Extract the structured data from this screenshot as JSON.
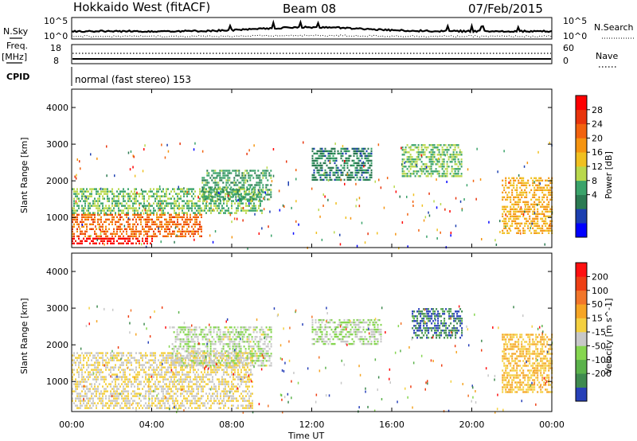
{
  "header": {
    "title": "Hokkaido West (fitACF)",
    "beam": "Beam 08",
    "date": "07/Feb/2015"
  },
  "panels": {
    "nsky_label": "N.Sky",
    "nsky_ticks": [
      "10^5",
      "10^0"
    ],
    "nsearch_ticks": [
      "10^5",
      "10^0"
    ],
    "nsearch_label": "N.Search",
    "freq_label_top": "Freq.",
    "freq_label_bottom": "[MHz]",
    "freq_ticks": [
      "18",
      "8"
    ],
    "nave_ticks": [
      "60",
      "0"
    ],
    "nave_label": "Nave",
    "cpid_label": "CPID",
    "cpid_text": "normal (fast stereo) 153"
  },
  "axes": {
    "ylabel": "Slant Range [km]",
    "yticks": [
      "4000",
      "3000",
      "2000",
      "1000"
    ],
    "xticks": [
      "00:00",
      "04:00",
      "08:00",
      "12:00",
      "16:00",
      "20:00",
      "00:00"
    ],
    "xlabel": "Time UT"
  },
  "colorbars": {
    "power_label": "Power [dB]",
    "power_ticks": [
      "28",
      "24",
      "20",
      "16",
      "12",
      "8",
      "4"
    ],
    "power_colors": [
      "#0000ff",
      "#1c3fb0",
      "#2b7a52",
      "#3aa36a",
      "#b9d84c",
      "#f0c020",
      "#f59410",
      "#f2620e",
      "#e8340c",
      "#ff0000"
    ],
    "velocity_label": "Velocity [m s^-1]",
    "velocity_ticks": [
      "200",
      "100",
      "50",
      "15",
      "-15",
      "-50",
      "-100",
      "-200"
    ],
    "velocity_colors": [
      "#2740b8",
      "#3f8a4f",
      "#5bb24b",
      "#86d650",
      "#c8c8c8",
      "#f4d040",
      "#f6a524",
      "#f2762a",
      "#ee3f14",
      "#ff1010"
    ]
  },
  "chart_data": [
    {
      "type": "heatmap",
      "title": "Power [dB]",
      "xlabel": "Time UT",
      "ylabel": "Slant Range [km]",
      "xlim": [
        "00:00",
        "24:00"
      ],
      "ylim": [
        180,
        4500
      ],
      "value_range": [
        0,
        30
      ],
      "regions": [
        {
          "t_start": 0.0,
          "t_end": 4.0,
          "r_min": 300,
          "r_max": 450,
          "value": 29
        },
        {
          "t_start": 0.0,
          "t_end": 6.5,
          "r_min": 450,
          "r_max": 1100,
          "value": 22
        },
        {
          "t_start": 0.0,
          "t_end": 9.5,
          "r_min": 1100,
          "r_max": 1800,
          "value": 12
        },
        {
          "t_start": 6.5,
          "t_end": 10.0,
          "r_min": 1500,
          "r_max": 2300,
          "value": 10
        },
        {
          "t_start": 12.0,
          "t_end": 15.0,
          "r_min": 2000,
          "r_max": 2900,
          "value": 8
        },
        {
          "t_start": 16.5,
          "t_end": 19.5,
          "r_min": 2100,
          "r_max": 3000,
          "value": 12
        },
        {
          "t_start": 21.5,
          "t_end": 24.0,
          "r_min": 600,
          "r_max": 2100,
          "value": 18
        }
      ]
    },
    {
      "type": "heatmap",
      "title": "Velocity [m s^-1]",
      "xlabel": "Time UT",
      "ylabel": "Slant Range [km]",
      "xlim": [
        "00:00",
        "24:00"
      ],
      "ylim": [
        180,
        4500
      ],
      "value_range": [
        -200,
        200
      ],
      "regions": [
        {
          "t_start": 0.0,
          "t_end": 9.0,
          "r_min": 300,
          "r_max": 1800,
          "value": 0
        },
        {
          "t_start": 5.0,
          "t_end": 10.0,
          "r_min": 1400,
          "r_max": 2500,
          "value": -30
        },
        {
          "t_start": 12.0,
          "t_end": 15.5,
          "r_min": 2000,
          "r_max": 2700,
          "value": -40
        },
        {
          "t_start": 17.0,
          "t_end": 19.5,
          "r_min": 2200,
          "r_max": 3000,
          "value": -150
        },
        {
          "t_start": 21.5,
          "t_end": 24.0,
          "r_min": 700,
          "r_max": 2300,
          "value": 40
        }
      ]
    }
  ]
}
